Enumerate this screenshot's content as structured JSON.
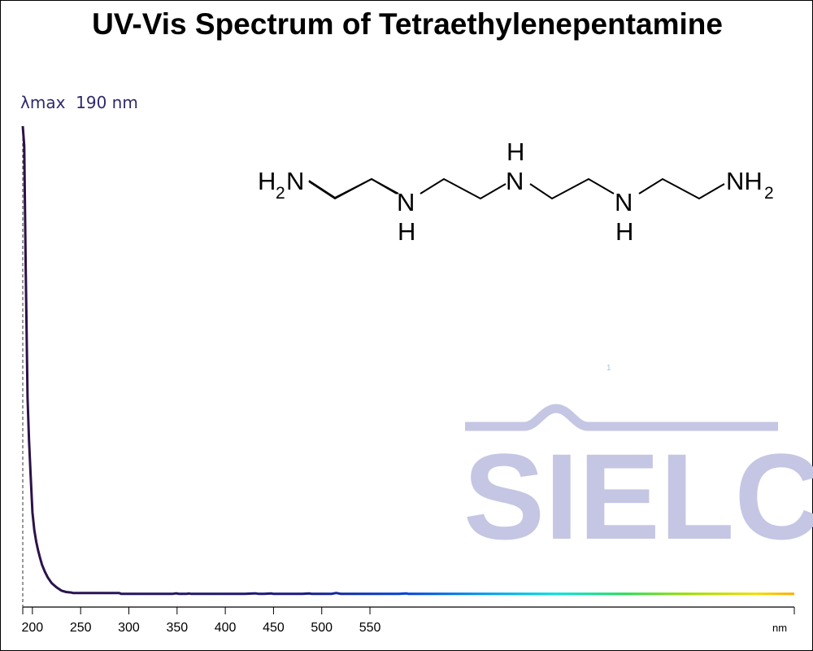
{
  "chart_data": {
    "type": "line",
    "title": "UV-Vis Spectrum of Tetraethylenepentamine",
    "annotation": {
      "label": "λmax",
      "value": "190 nm"
    },
    "x_unit": "nm",
    "xlim": [
      190,
      990
    ],
    "ylim": [
      0,
      1
    ],
    "x_ticks": [
      200,
      250,
      300,
      350,
      400,
      450,
      500,
      550
    ],
    "gridlines": false,
    "series": [
      {
        "x": [
          190,
          191.5,
          193,
          195,
          196.5,
          198,
          200,
          202,
          204,
          206,
          208,
          210,
          213,
          216,
          220,
          225,
          230,
          235,
          240,
          242,
          250,
          260,
          280,
          290,
          292,
          300,
          320,
          340,
          345,
          348,
          350,
          352,
          355,
          360,
          362,
          365,
          370,
          380,
          400,
          420,
          430,
          432,
          435,
          440,
          448,
          450,
          460,
          470,
          480,
          487,
          490,
          500,
          510,
          515,
          520,
          540,
          560,
          580,
          588,
          590,
          600
        ],
        "y": [
          1.0,
          0.958,
          0.7,
          0.42,
          0.33,
          0.262,
          0.176,
          0.138,
          0.113,
          0.094,
          0.078,
          0.064,
          0.049,
          0.037,
          0.025,
          0.016,
          0.009,
          0.006,
          0.005,
          0.004,
          0.004,
          0.004,
          0.004,
          0.004,
          0.002,
          0.002,
          0.002,
          0.002,
          0.002,
          0.003,
          0.003,
          0.002,
          0.002,
          0.002,
          0.003,
          0.002,
          0.002,
          0.002,
          0.002,
          0.002,
          0.003,
          0.003,
          0.002,
          0.002,
          0.003,
          0.002,
          0.002,
          0.002,
          0.002,
          0.003,
          0.002,
          0.002,
          0.002,
          0.004,
          0.002,
          0.002,
          0.002,
          0.002,
          0.003,
          0.002,
          0.002
        ]
      }
    ],
    "colors": {
      "uv_curve": "#2d1246",
      "annotation_text": "#2e2a6b",
      "watermark": "#c5c6e4",
      "spectrum": [
        "#2d1246",
        "#1a1a80",
        "#0044dd",
        "#0099ee",
        "#00e0e0",
        "#22dd55",
        "#99dd00",
        "#eedd00",
        "#ffaa00"
      ]
    }
  },
  "molecule": {
    "name_atoms": {
      "left_terminal": "H",
      "left_terminal_sub": "2",
      "left_terminal_n": "N",
      "n1": "N",
      "n1_h": "H",
      "n2": "N",
      "n2_h": "H",
      "n3": "N",
      "n3_h": "H",
      "right_terminal": "NH",
      "right_terminal_sub": "2"
    }
  },
  "watermark": {
    "text": "SIELC",
    "mark": "1"
  }
}
